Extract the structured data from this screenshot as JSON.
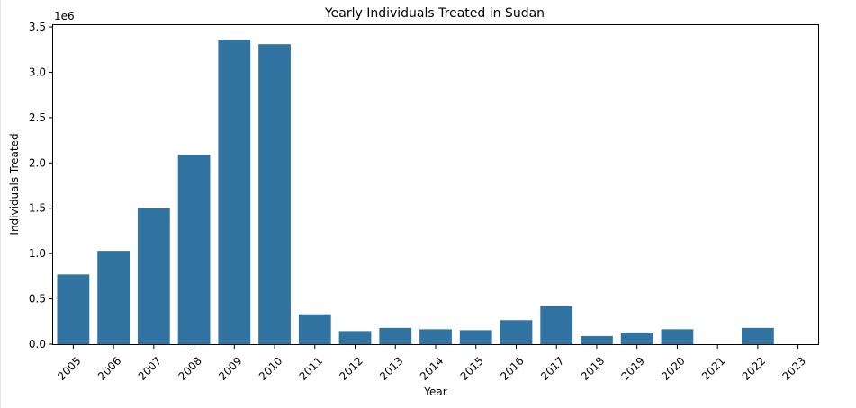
{
  "chart_data": {
    "type": "bar",
    "title": "Yearly Individuals Treated in Sudan",
    "xlabel": "Year",
    "ylabel": "Individuals Treated",
    "y_offset_label": "1e6",
    "categories": [
      "2005",
      "2006",
      "2007",
      "2008",
      "2009",
      "2010",
      "2011",
      "2012",
      "2013",
      "2014",
      "2015",
      "2016",
      "2017",
      "2018",
      "2019",
      "2020",
      "2021",
      "2022",
      "2023"
    ],
    "values": [
      770000,
      1030000,
      1500000,
      2090000,
      3360000,
      3310000,
      330000,
      145000,
      180000,
      165000,
      155000,
      265000,
      420000,
      90000,
      130000,
      165000,
      0,
      180000,
      0
    ],
    "ylim": [
      0,
      3520000
    ],
    "yticks": [
      0,
      500000,
      1000000,
      1500000,
      2000000,
      2500000,
      3000000,
      3500000
    ],
    "ytick_labels": [
      "0.0",
      "0.5",
      "1.0",
      "1.5",
      "2.0",
      "2.5",
      "3.0",
      "3.5"
    ],
    "bar_color": "#3274a1",
    "grid": false,
    "legend": false
  }
}
